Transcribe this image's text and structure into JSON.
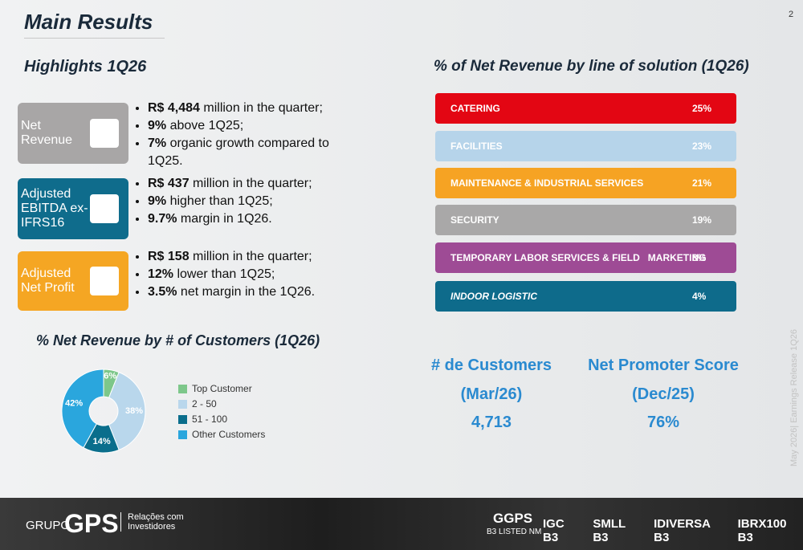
{
  "header": {
    "title": "Main Results",
    "page": "2",
    "side_note": "May 2026| Earnings Release 1Q26"
  },
  "highlights": {
    "title": "Highlights 1Q26",
    "items": [
      {
        "label": "Net Revenue",
        "bullets": [
          {
            "bold": "R$ 4,484",
            "text": " million in the quarter;"
          },
          {
            "bold": "9%",
            "text": " above 1Q25;"
          },
          {
            "bold": "7%",
            "text": " organic growth compared to 1Q25."
          }
        ]
      },
      {
        "label": "Adjusted EBITDA ex-IFRS16",
        "bullets": [
          {
            "bold": "R$ 437",
            "text": " million in the quarter;"
          },
          {
            "bold": "9%",
            "text": " higher than 1Q25;"
          },
          {
            "bold": "9.7%",
            "text": " margin in 1Q26."
          }
        ]
      },
      {
        "label": "Adjusted Net Profit",
        "bullets": [
          {
            "bold": "R$ 158",
            "text": " million in the quarter;"
          },
          {
            "bold": "12%",
            "text": " lower than 1Q25;"
          },
          {
            "bold": "3.5%",
            "text": " net margin in the 1Q26."
          }
        ]
      }
    ]
  },
  "solutions": {
    "title": "% of Net Revenue by line of solution (1Q26)",
    "rows": [
      {
        "name": "CATERING",
        "share": "25%",
        "color": "#e30613"
      },
      {
        "name": "FACILITIES",
        "share": "23%",
        "color": "#b6d4ea"
      },
      {
        "name": "MAINTENANCE & INDUSTRIAL SERVICES",
        "share": "21%",
        "color": "#f6a323"
      },
      {
        "name": "SECURITY",
        "share": "19%",
        "color": "#a9a8a8"
      },
      {
        "name": "TEMPORARY LABOR SERVICES & FIELD   MARKETING",
        "share": "8%",
        "color": "#9e4b95"
      },
      {
        "name": "INDOOR LOGISTIC",
        "share": "4%",
        "color": "#0e6b8b"
      }
    ]
  },
  "kpis": [
    {
      "title": "# de Customers",
      "period": "(Mar/26)",
      "value": "4,713"
    },
    {
      "title": "Net Promoter Score",
      "period": "(Dec/25)",
      "value": "76%"
    }
  ],
  "chart_data": {
    "type": "pie",
    "title": "% Net Revenue by # of Customers (1Q26)",
    "categories": [
      "Top Customer",
      "2 - 50",
      "51 - 100",
      "Other Customers"
    ],
    "values": [
      6,
      38,
      14,
      42
    ],
    "value_labels": [
      "6%",
      "38%",
      "14%",
      "42%"
    ],
    "colors": [
      "#7dc78a",
      "#b9d7ec",
      "#0a6e8c",
      "#2aa6dd"
    ]
  },
  "footer": {
    "brand_prefix": "GRUPO",
    "brand": "GPS",
    "brand_sub": "Relações com Investidores",
    "listing": "GGPS",
    "listing_sub": "B3 LISTED NM",
    "indices": [
      "IGC B3",
      "SMLL B3",
      "IDIVERSA B3",
      "IBRX100 B3"
    ]
  }
}
